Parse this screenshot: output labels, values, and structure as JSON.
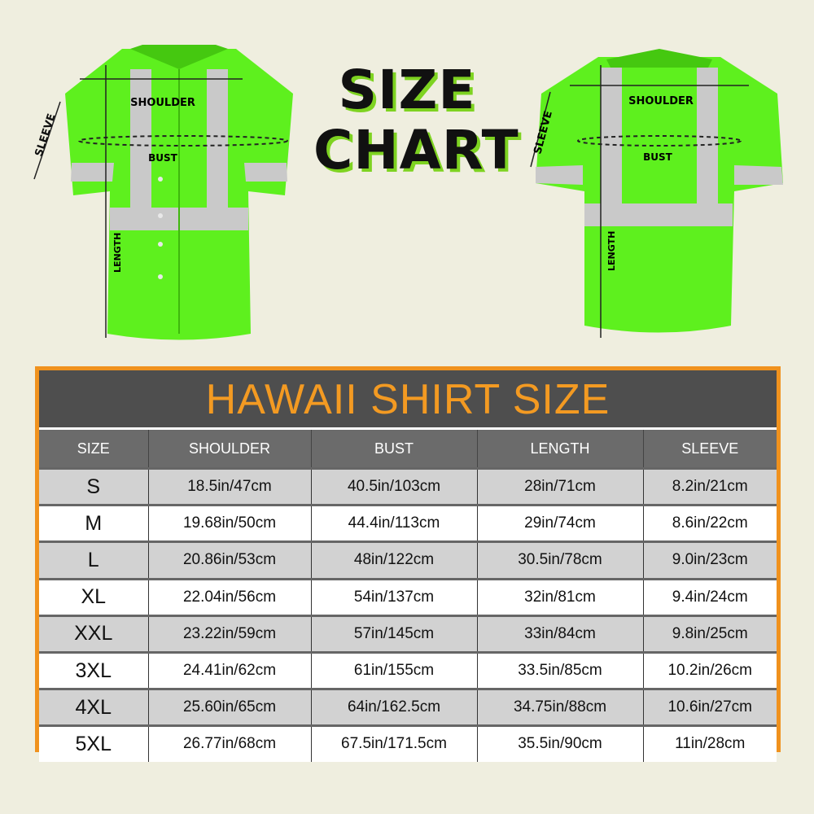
{
  "title": {
    "line1": "SIZE",
    "line2": "CHART"
  },
  "front_shirt": {
    "labels": {
      "shoulder": "SHOULDER",
      "bust": "BUST",
      "sleeve": "SLEEVE",
      "length": "LENGTH"
    }
  },
  "back_shirt": {
    "labels": {
      "shoulder": "SHOULDER",
      "bust": "BUST",
      "sleeve": "SLEEVE",
      "length": "LENGTH"
    }
  },
  "colors": {
    "shirt": "#5ef01e",
    "reflective": "#c9c9c9",
    "frame": "#f0921e",
    "title_text": "#f39a22"
  },
  "table": {
    "title": "HAWAII SHIRT SIZE",
    "headers": [
      "SIZE",
      "SHOULDER",
      "BUST",
      "LENGTH",
      "SLEEVE"
    ],
    "rows": [
      [
        "S",
        "18.5in/47cm",
        "40.5in/103cm",
        "28in/71cm",
        "8.2in/21cm"
      ],
      [
        "M",
        "19.68in/50cm",
        "44.4in/113cm",
        "29in/74cm",
        "8.6in/22cm"
      ],
      [
        "L",
        "20.86in/53cm",
        "48in/122cm",
        "30.5in/78cm",
        "9.0in/23cm"
      ],
      [
        "XL",
        "22.04in/56cm",
        "54in/137cm",
        "32in/81cm",
        "9.4in/24cm"
      ],
      [
        "XXL",
        "23.22in/59cm",
        "57in/145cm",
        "33in/84cm",
        "9.8in/25cm"
      ],
      [
        "3XL",
        "24.41in/62cm",
        "61in/155cm",
        "33.5in/85cm",
        "10.2in/26cm"
      ],
      [
        "4XL",
        "25.60in/65cm",
        "64in/162.5cm",
        "34.75in/88cm",
        "10.6in/27cm"
      ],
      [
        "5XL",
        "26.77in/68cm",
        "67.5in/171.5cm",
        "35.5in/90cm",
        "11in/28cm"
      ]
    ]
  }
}
